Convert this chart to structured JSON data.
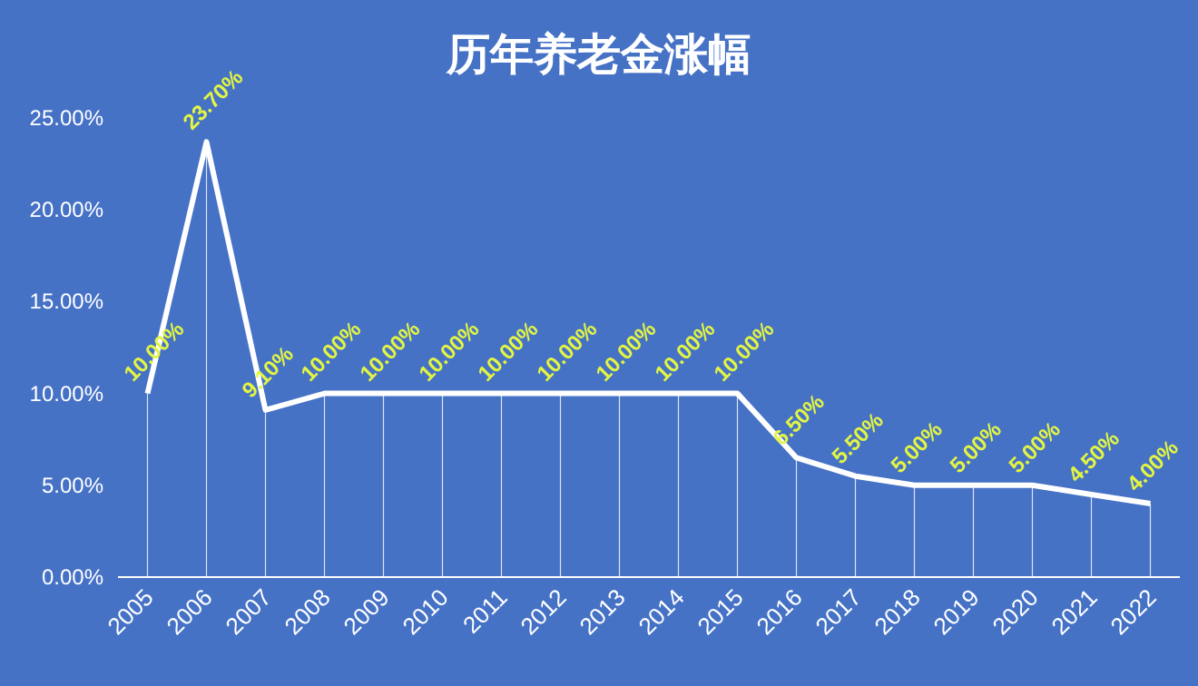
{
  "chart_data": {
    "type": "line",
    "title": "历年养老金涨幅",
    "categories": [
      "2005",
      "2006",
      "2007",
      "2008",
      "2009",
      "2010",
      "2011",
      "2012",
      "2013",
      "2014",
      "2015",
      "2016",
      "2017",
      "2018",
      "2019",
      "2020",
      "2021",
      "2022"
    ],
    "series": [
      {
        "color": "#ffffff",
        "values": [
          10,
          23.7,
          9.1,
          10,
          10,
          10,
          10,
          10,
          10,
          10,
          10,
          6.5,
          5.5,
          5,
          5,
          5,
          4.5,
          4
        ],
        "value_labels": [
          "10.00%",
          "23.70%",
          "9.10%",
          "10.00%",
          "10.00%",
          "10.00%",
          "10.00%",
          "10.00%",
          "10.00%",
          "10.00%",
          "10.00%",
          "6.50%",
          "5.50%",
          "5.00%",
          "5.00%",
          "5.00%",
          "4.50%",
          "4.00%"
        ]
      }
    ],
    "ylim": [
      0,
      25
    ],
    "yticks": [
      {
        "value": 0,
        "label": "0.00%"
      },
      {
        "value": 5,
        "label": "5.00%"
      },
      {
        "value": 10,
        "label": "10.00%"
      },
      {
        "value": 15,
        "label": "15.00%"
      },
      {
        "value": 20,
        "label": "20.00%"
      },
      {
        "value": 25,
        "label": "25.00%"
      }
    ]
  }
}
